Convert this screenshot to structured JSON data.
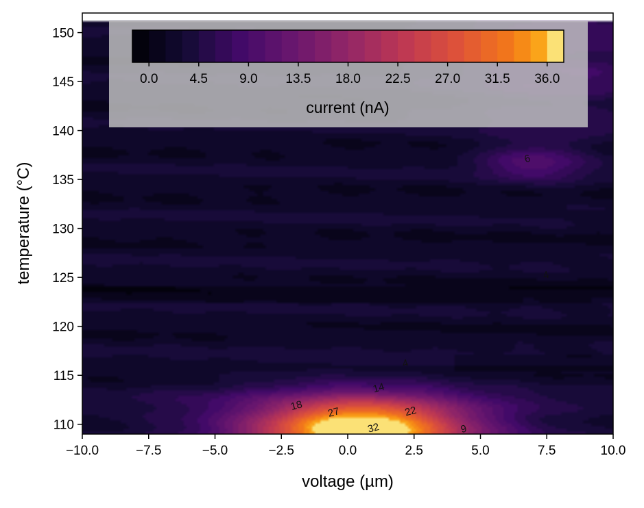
{
  "chart_data": {
    "type": "heatmap",
    "subtype": "filled-contour",
    "xlabel": "voltage (µm)",
    "ylabel": "temperature (°C)",
    "xlim": [
      -10.0,
      10.0
    ],
    "ylim": [
      109.0,
      152.0
    ],
    "x_ticks": [
      "−10.0",
      "−7.5",
      "−5.0",
      "−2.5",
      "0.0",
      "2.5",
      "5.0",
      "7.5",
      "10.0"
    ],
    "x_tick_values": [
      -10,
      -7.5,
      -5,
      -2.5,
      0,
      2.5,
      5,
      7.5,
      10
    ],
    "y_ticks": [
      "110",
      "115",
      "120",
      "125",
      "130",
      "135",
      "140",
      "145",
      "150"
    ],
    "y_tick_values": [
      110,
      115,
      120,
      125,
      130,
      135,
      140,
      145,
      150
    ],
    "colormap": "inferno",
    "colorbar": {
      "label": "current (nA)",
      "placement": "upper inset, horizontal",
      "min": -1.5,
      "max": 37.5,
      "levels": 26,
      "ticks": [
        "0.0",
        "4.5",
        "9.0",
        "13.5",
        "18.0",
        "22.5",
        "27.0",
        "31.5",
        "36.0"
      ],
      "tick_values": [
        0,
        4.5,
        9,
        13.5,
        18,
        22.5,
        27,
        31.5,
        36
      ]
    },
    "features": [
      {
        "name": "main peak",
        "x": 0.5,
        "y": 109.5,
        "peak_value": 36,
        "sx": 2.8,
        "sy": 2.2
      },
      {
        "name": "secondary lobe",
        "x": 7.0,
        "y": 136.8,
        "peak_value": 7,
        "sx": 1.3,
        "sy": 1.4
      },
      {
        "name": "upper-right glow",
        "x": 8.0,
        "y": 147.0,
        "peak_value": 5,
        "sx": 3.0,
        "sy": 5.0
      }
    ],
    "contour_labels": [
      {
        "text": "4",
        "x": 2.2,
        "y": 115.9
      },
      {
        "text": "14",
        "x": 1.2,
        "y": 113.4
      },
      {
        "text": "18",
        "x": -1.9,
        "y": 111.6
      },
      {
        "text": "27",
        "x": -0.5,
        "y": 110.9
      },
      {
        "text": "22",
        "x": 2.4,
        "y": 111.0
      },
      {
        "text": "32",
        "x": 1.0,
        "y": 109.3
      },
      {
        "text": "9",
        "x": 4.4,
        "y": 109.2
      },
      {
        "text": "6",
        "x": 6.8,
        "y": 136.8
      },
      {
        "text": "4",
        "x": 7.5,
        "y": 124.9
      }
    ],
    "grid": false,
    "legend": "none"
  }
}
